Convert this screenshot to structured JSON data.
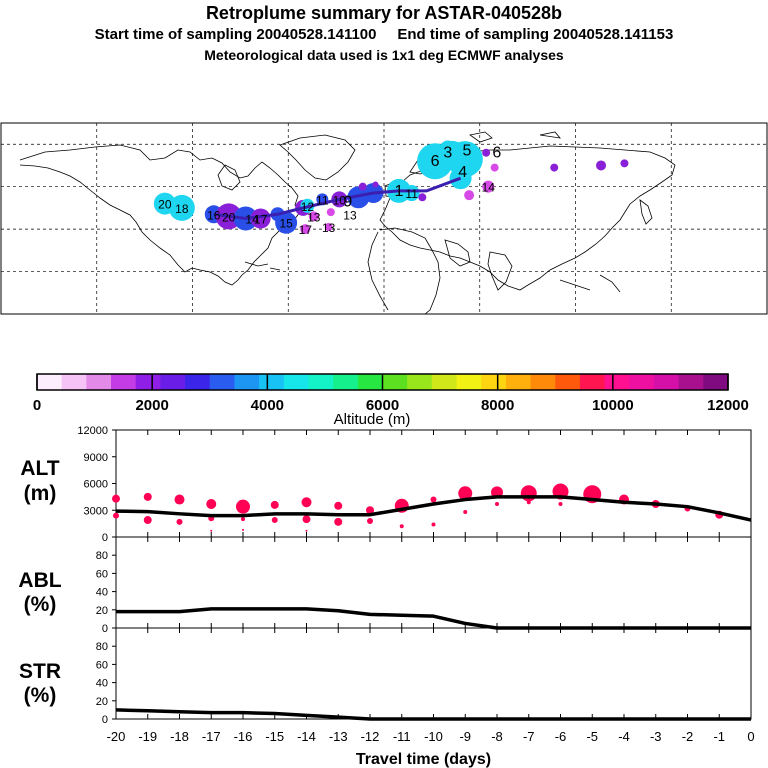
{
  "header": {
    "title": "Retroplume summary for ASTAR-040528b",
    "subtitle": "Start time of sampling 20040528.141100     End time of sampling 20040528.141153",
    "meteo": "Meteorological data used is 1x1 deg ECMWF analyses"
  },
  "colors": {
    "line": "#000000",
    "dot": "#ff0055",
    "colorbar": [
      "#fdeefd",
      "#f6c3f6",
      "#e38ae8",
      "#c43ce6",
      "#8f1fe6",
      "#6a1de6",
      "#3a25e8",
      "#2a5cf0",
      "#1c95f3",
      "#18c2f5",
      "#16e6ea",
      "#14f2c8",
      "#16f08c",
      "#27e843",
      "#5ce020",
      "#9ae61c",
      "#d0e81a",
      "#f2f215",
      "#ffd410",
      "#ffb00d",
      "#ff8a0a",
      "#ff5a0c",
      "#ff1550",
      "#ff1090",
      "#ee10a0",
      "#d410a8",
      "#a8108e",
      "#800a80"
    ],
    "plume_cyan": "#1fd6f0",
    "plume_blue": "#2a4fe8",
    "plume_purple": "#8a1fd8",
    "plume_magenta": "#d84ae8"
  },
  "map": {
    "plume_labels": [
      {
        "label": "20",
        "lon": -103,
        "lat": 52
      },
      {
        "label": "18",
        "lon": -95,
        "lat": 50
      },
      {
        "label": "16",
        "lon": -80,
        "lat": 47
      },
      {
        "label": "20",
        "lon": -73,
        "lat": 46
      },
      {
        "label": "14",
        "lon": -62,
        "lat": 45
      },
      {
        "label": "17",
        "lon": -58,
        "lat": 45
      },
      {
        "label": "15",
        "lon": -46,
        "lat": 43
      },
      {
        "label": "12",
        "lon": -36,
        "lat": 51
      },
      {
        "label": "11",
        "lon": -29,
        "lat": 54
      },
      {
        "label": "10",
        "lon": -21,
        "lat": 54
      },
      {
        "label": "9",
        "lon": -17,
        "lat": 53
      },
      {
        "label": "13",
        "lon": -33,
        "lat": 46
      },
      {
        "label": "13",
        "lon": -16,
        "lat": 47
      },
      {
        "label": "17",
        "lon": -37,
        "lat": 40
      },
      {
        "label": "13",
        "lon": -26,
        "lat": 41
      },
      {
        "label": "1",
        "lon": 7,
        "lat": 58
      },
      {
        "label": "11",
        "lon": 13,
        "lat": 57
      },
      {
        "label": "6",
        "lon": 24,
        "lat": 72
      },
      {
        "label": "3",
        "lon": 30,
        "lat": 76
      },
      {
        "label": "4",
        "lon": 37,
        "lat": 67
      },
      {
        "label": "5",
        "lon": 39,
        "lat": 77
      },
      {
        "label": "6",
        "lon": 53,
        "lat": 76
      },
      {
        "label": "14",
        "lon": 49,
        "lat": 60
      }
    ]
  },
  "colorbar": {
    "tick_labels": [
      "0",
      "2000",
      "4000",
      "6000",
      "8000",
      "10000",
      "12000"
    ],
    "xlabel": "Altitude (m)"
  },
  "chart_data": [
    {
      "type": "line",
      "panel": "ALT",
      "ylabel": "ALT",
      "yunit": "(m)",
      "xlim": [
        -20,
        0
      ],
      "ylim": [
        0,
        12000
      ],
      "yticks": [
        0,
        3000,
        6000,
        9000,
        12000
      ],
      "yticklabels": [
        "0",
        "3000",
        "6000",
        "9000",
        "12000"
      ],
      "x": [
        -20,
        -19,
        -18,
        -17,
        -16,
        -15,
        -14,
        -13,
        -12,
        -11,
        -10,
        -9,
        -8,
        -7,
        -6,
        -5,
        -4,
        -3,
        -2,
        -1,
        0
      ],
      "values": [
        2900,
        2850,
        2600,
        2400,
        2400,
        2600,
        2600,
        2500,
        2500,
        3100,
        3700,
        4200,
        4500,
        4500,
        4500,
        4200,
        3900,
        3700,
        3400,
        2700,
        1900
      ],
      "spread_dots": [
        {
          "x": -20,
          "y": 4300,
          "size": 4
        },
        {
          "x": -20,
          "y": 2400,
          "size": 3
        },
        {
          "x": -19,
          "y": 4500,
          "size": 4
        },
        {
          "x": -19,
          "y": 1900,
          "size": 4
        },
        {
          "x": -18,
          "y": 4200,
          "size": 5
        },
        {
          "x": -18,
          "y": 1700,
          "size": 3
        },
        {
          "x": -17,
          "y": 3700,
          "size": 5
        },
        {
          "x": -17,
          "y": 2100,
          "size": 3
        },
        {
          "x": -17,
          "y": 700,
          "size": 1
        },
        {
          "x": -16,
          "y": 3400,
          "size": 7
        },
        {
          "x": -16,
          "y": 2000,
          "size": 2
        },
        {
          "x": -16,
          "y": 800,
          "size": 1
        },
        {
          "x": -15,
          "y": 3600,
          "size": 4
        },
        {
          "x": -15,
          "y": 1900,
          "size": 3
        },
        {
          "x": -14,
          "y": 3900,
          "size": 5
        },
        {
          "x": -14,
          "y": 2000,
          "size": 4
        },
        {
          "x": -14,
          "y": 700,
          "size": 1
        },
        {
          "x": -13,
          "y": 3500,
          "size": 4
        },
        {
          "x": -13,
          "y": 1700,
          "size": 4
        },
        {
          "x": -12,
          "y": 3000,
          "size": 4
        },
        {
          "x": -12,
          "y": 1800,
          "size": 3
        },
        {
          "x": -11,
          "y": 3500,
          "size": 7
        },
        {
          "x": -11,
          "y": 1200,
          "size": 2
        },
        {
          "x": -10,
          "y": 4200,
          "size": 3
        },
        {
          "x": -10,
          "y": 1400,
          "size": 2
        },
        {
          "x": -9,
          "y": 4900,
          "size": 7
        },
        {
          "x": -9,
          "y": 2800,
          "size": 2
        },
        {
          "x": -8,
          "y": 5000,
          "size": 6
        },
        {
          "x": -8,
          "y": 3700,
          "size": 2
        },
        {
          "x": -7,
          "y": 4900,
          "size": 8
        },
        {
          "x": -7,
          "y": 3900,
          "size": 2
        },
        {
          "x": -6,
          "y": 5100,
          "size": 8
        },
        {
          "x": -6,
          "y": 3700,
          "size": 2
        },
        {
          "x": -5,
          "y": 4800,
          "size": 9
        },
        {
          "x": -4,
          "y": 4200,
          "size": 5
        },
        {
          "x": -3,
          "y": 3700,
          "size": 4
        },
        {
          "x": -2,
          "y": 3200,
          "size": 3
        },
        {
          "x": -1,
          "y": 2500,
          "size": 4
        }
      ]
    },
    {
      "type": "line",
      "panel": "ABL",
      "ylabel": "ABL",
      "yunit": "(%)",
      "xlim": [
        -20,
        0
      ],
      "ylim": [
        0,
        100
      ],
      "yticks": [
        0,
        20,
        40,
        60,
        80
      ],
      "yticklabels": [
        "0",
        "20",
        "40",
        "60",
        "80"
      ],
      "x": [
        -20,
        -19,
        -18,
        -17,
        -16,
        -15,
        -14,
        -13,
        -12,
        -11,
        -10,
        -9,
        -8,
        -7,
        -6,
        -5,
        -4,
        -3,
        -2,
        -1,
        0
      ],
      "values": [
        18,
        18,
        18,
        21,
        21,
        21,
        21,
        19,
        15,
        14,
        13,
        5,
        0,
        0,
        0,
        0,
        0,
        0,
        0,
        0,
        0
      ]
    },
    {
      "type": "line",
      "panel": "STR",
      "ylabel": "STR",
      "yunit": "(%)",
      "xlim": [
        -20,
        0
      ],
      "ylim": [
        0,
        100
      ],
      "yticks": [
        0,
        20,
        40,
        60,
        80
      ],
      "yticklabels": [
        "0",
        "20",
        "40",
        "60",
        "80"
      ],
      "x": [
        -20,
        -19,
        -18,
        -17,
        -16,
        -15,
        -14,
        -13,
        -12,
        -11,
        -10,
        -9,
        -8,
        -7,
        -6,
        -5,
        -4,
        -3,
        -2,
        -1,
        0
      ],
      "values": [
        10,
        9,
        8,
        7,
        7,
        6,
        4,
        2,
        0,
        0,
        0,
        0,
        0,
        0,
        0,
        0,
        0,
        0,
        0,
        0,
        0
      ],
      "xlabel": "Travel time (days)",
      "xticklabels": [
        "-20",
        "-19",
        "-18",
        "-17",
        "-16",
        "-15",
        "-14",
        "-13",
        "-12",
        "-11",
        "-10",
        "-9",
        "-8",
        "-7",
        "-6",
        "-5",
        "-4",
        "-3",
        "-2",
        "-1",
        "0"
      ]
    }
  ]
}
